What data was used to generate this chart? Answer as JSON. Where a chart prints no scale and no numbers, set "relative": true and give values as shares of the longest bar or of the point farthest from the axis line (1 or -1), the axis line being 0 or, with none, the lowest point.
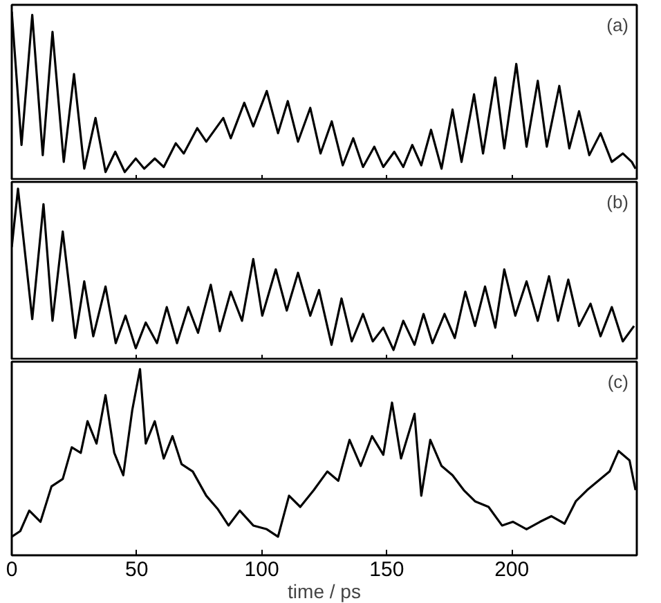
{
  "chart_data": [
    {
      "type": "line",
      "relative": true,
      "xlim": [
        0,
        250
      ],
      "xticks": [
        0,
        50,
        100,
        150,
        200
      ],
      "tick_labels": false,
      "annotations": [
        "(a)"
      ],
      "series": [
        {
          "color": "#000000",
          "x": [
            0,
            3.9,
            8.2,
            12.4,
            16.3,
            20.8,
            24.9,
            29.0,
            33.5,
            37.5,
            41.4,
            45.2,
            49.6,
            53.0,
            57.2,
            60.8,
            65.6,
            68.8,
            74.2,
            77.8,
            84.6,
            87.6,
            93.0,
            96.6,
            102.0,
            106.5,
            110.4,
            114.5,
            119.4,
            123.5,
            128.0,
            132.4,
            136.6,
            140.5,
            145.0,
            148.6,
            153.0,
            156.6,
            160.2,
            163.8,
            167.7,
            171.9,
            176.3,
            179.9,
            184.9,
            188.5,
            193.4,
            197.0,
            201.8,
            205.9,
            210.4,
            214.0,
            219.0,
            223.0,
            226.9,
            231.0,
            235.5,
            240.0,
            244.4,
            248.0,
            249.5
          ],
          "values": [
            1.0,
            0.21,
            0.98,
            0.15,
            0.88,
            0.11,
            0.63,
            0.07,
            0.37,
            0.05,
            0.17,
            0.05,
            0.13,
            0.07,
            0.13,
            0.08,
            0.22,
            0.16,
            0.31,
            0.23,
            0.37,
            0.25,
            0.46,
            0.32,
            0.53,
            0.28,
            0.47,
            0.23,
            0.43,
            0.16,
            0.35,
            0.09,
            0.25,
            0.08,
            0.2,
            0.08,
            0.17,
            0.08,
            0.21,
            0.09,
            0.3,
            0.07,
            0.42,
            0.11,
            0.51,
            0.16,
            0.61,
            0.19,
            0.69,
            0.2,
            0.59,
            0.2,
            0.56,
            0.19,
            0.41,
            0.15,
            0.28,
            0.11,
            0.16,
            0.11,
            0.07
          ]
        }
      ]
    },
    {
      "type": "line",
      "relative": true,
      "xlim": [
        0,
        250
      ],
      "xticks": [
        0,
        50,
        100,
        150,
        200
      ],
      "tick_labels": false,
      "annotations": [
        "(b)"
      ],
      "series": [
        {
          "color": "#000000",
          "x": [
            0,
            2.5,
            8.2,
            12.7,
            16.3,
            20.4,
            25.4,
            29.0,
            32.6,
            37.5,
            41.6,
            45.5,
            49.6,
            53.6,
            58.1,
            62.0,
            66.1,
            70.6,
            74.5,
            79.6,
            83.2,
            87.6,
            92.1,
            96.6,
            100.2,
            105.6,
            110.0,
            114.5,
            119.4,
            122.9,
            127.9,
            131.9,
            136.0,
            140.5,
            144.4,
            148.6,
            152.7,
            156.6,
            161.1,
            164.7,
            168.3,
            173.1,
            177.2,
            181.4,
            185.3,
            189.3,
            193.4,
            197.0,
            201.4,
            205.9,
            210.4,
            214.9,
            218.5,
            222.6,
            226.9,
            231.5,
            235.5,
            240.0,
            244.4,
            248.9
          ],
          "values": [
            0.66,
            1.0,
            0.24,
            0.91,
            0.23,
            0.75,
            0.13,
            0.46,
            0.14,
            0.43,
            0.1,
            0.26,
            0.07,
            0.22,
            0.1,
            0.31,
            0.1,
            0.31,
            0.16,
            0.44,
            0.17,
            0.4,
            0.23,
            0.59,
            0.26,
            0.53,
            0.29,
            0.51,
            0.26,
            0.41,
            0.09,
            0.36,
            0.11,
            0.27,
            0.11,
            0.19,
            0.06,
            0.23,
            0.09,
            0.27,
            0.1,
            0.27,
            0.13,
            0.4,
            0.2,
            0.43,
            0.19,
            0.53,
            0.26,
            0.46,
            0.23,
            0.49,
            0.23,
            0.47,
            0.2,
            0.33,
            0.14,
            0.31,
            0.11,
            0.2
          ]
        }
      ]
    },
    {
      "type": "line",
      "relative": true,
      "xlim": [
        0,
        250
      ],
      "xticks": [
        0,
        50,
        100,
        150,
        200
      ],
      "tick_labels": "x",
      "xlabel": "time / ps",
      "annotations": [
        "(c)"
      ],
      "series": [
        {
          "color": "#000000",
          "x": [
            0,
            3.4,
            7.0,
            11.5,
            15.9,
            20.4,
            24.0,
            27.6,
            30.3,
            33.9,
            37.5,
            41.0,
            44.6,
            48.2,
            51.3,
            53.6,
            57.2,
            60.8,
            64.3,
            67.9,
            72.4,
            77.8,
            82.3,
            86.7,
            91.2,
            96.6,
            102.0,
            106.5,
            110.9,
            115.4,
            120.8,
            126.2,
            130.6,
            135.1,
            139.6,
            144.1,
            148.6,
            152.1,
            155.7,
            161.1,
            163.8,
            167.4,
            171.9,
            176.3,
            180.8,
            185.3,
            190.7,
            196.1,
            200.5,
            205.9,
            211.3,
            215.8,
            221.1,
            225.6,
            230.1,
            234.6,
            239.1,
            242.7,
            247.1,
            249.5
          ],
          "values": [
            0.1,
            0.13,
            0.24,
            0.18,
            0.37,
            0.41,
            0.58,
            0.55,
            0.72,
            0.6,
            0.86,
            0.55,
            0.43,
            0.78,
            1.0,
            0.6,
            0.72,
            0.52,
            0.64,
            0.49,
            0.45,
            0.32,
            0.25,
            0.16,
            0.24,
            0.16,
            0.14,
            0.1,
            0.32,
            0.26,
            0.35,
            0.45,
            0.4,
            0.62,
            0.48,
            0.64,
            0.54,
            0.82,
            0.52,
            0.76,
            0.32,
            0.62,
            0.48,
            0.43,
            0.35,
            0.29,
            0.26,
            0.16,
            0.18,
            0.14,
            0.18,
            0.21,
            0.17,
            0.29,
            0.35,
            0.4,
            0.45,
            0.56,
            0.51,
            0.35
          ]
        }
      ]
    }
  ]
}
